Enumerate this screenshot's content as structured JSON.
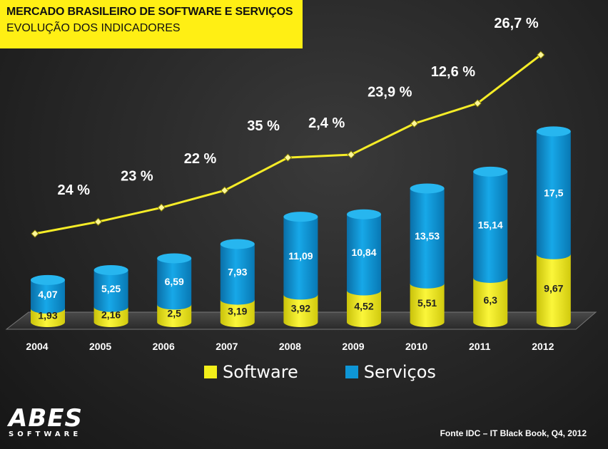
{
  "title": "MERCADO BRASILEIRO DE SOFTWARE E SERVIÇOS",
  "subtitle": "EVOLUÇÃO DOS INDICADORES",
  "legend": {
    "software": "Software",
    "servicos": "Serviços"
  },
  "source": "Fonte IDC – IT Black Book, Q4, 2012",
  "logo": {
    "main": "ABES",
    "sub": "SOFTWARE"
  },
  "colors": {
    "software": "#f2ee1a",
    "servicos": "#0e96d6",
    "line": "#f5ec27",
    "title_bg": "#ffef14"
  },
  "chart_data": {
    "type": "bar",
    "stacked": true,
    "categories": [
      "2004",
      "2005",
      "2006",
      "2007",
      "2008",
      "2009",
      "2010",
      "2011",
      "2012"
    ],
    "series": [
      {
        "name": "Software",
        "values": [
          1.93,
          2.16,
          2.5,
          3.19,
          3.92,
          4.52,
          5.51,
          6.3,
          9.67
        ],
        "labels": [
          "1,93",
          "2,16",
          "2,5",
          "3,19",
          "3,92",
          "4,52",
          "5,51",
          "6,3",
          "9,67"
        ]
      },
      {
        "name": "Serviços",
        "values": [
          4.07,
          5.25,
          6.59,
          7.93,
          11.09,
          10.84,
          13.53,
          15.14,
          17.5
        ],
        "labels": [
          "4,07",
          "5,25",
          "6,59",
          "7,93",
          "11,09",
          "10,84",
          "13,53",
          "15,14",
          "17,5"
        ]
      }
    ],
    "growth_labels": [
      "24 %",
      "23 %",
      "22 %",
      "35 %",
      "2,4 %",
      "23,9 %",
      "12,6 %",
      "26,7 %"
    ],
    "legend_position": "bottom",
    "grid": false
  }
}
